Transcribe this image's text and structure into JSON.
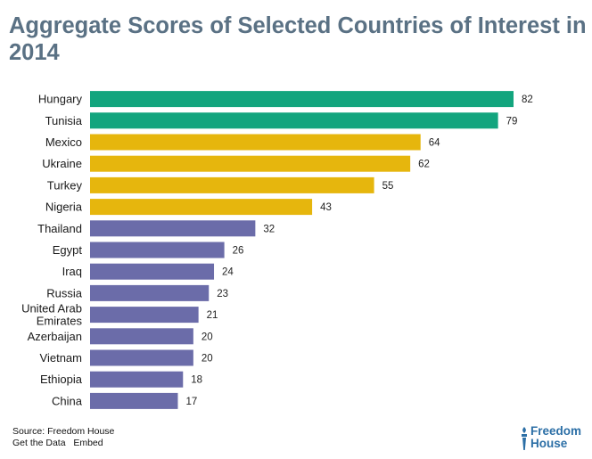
{
  "title": "Aggregate Scores of Selected Countries of Interest in 2014",
  "chart_data": {
    "type": "bar",
    "orientation": "horizontal",
    "title": "Aggregate Scores of Selected Countries of Interest in 2014",
    "xlabel": "",
    "ylabel": "",
    "xlim": [
      0,
      82
    ],
    "grid": false,
    "categories": [
      "Hungary",
      "Tunisia",
      "Mexico",
      "Ukraine",
      "Turkey",
      "Nigeria",
      "Thailand",
      "Egypt",
      "Iraq",
      "Russia",
      "United Arab Emirates",
      "Azerbaijan",
      "Vietnam",
      "Ethiopia",
      "China"
    ],
    "category_lines": [
      [
        "Hungary"
      ],
      [
        "Tunisia"
      ],
      [
        "Mexico"
      ],
      [
        "Ukraine"
      ],
      [
        "Turkey"
      ],
      [
        "Nigeria"
      ],
      [
        "Thailand"
      ],
      [
        "Egypt"
      ],
      [
        "Iraq"
      ],
      [
        "Russia"
      ],
      [
        "United Arab",
        "Emirates"
      ],
      [
        "Azerbaijan"
      ],
      [
        "Vietnam"
      ],
      [
        "Ethiopia"
      ],
      [
        "China"
      ]
    ],
    "values": [
      82,
      79,
      64,
      62,
      55,
      43,
      32,
      26,
      24,
      23,
      21,
      20,
      20,
      18,
      17
    ],
    "bar_colors": [
      "#13a57e",
      "#13a57e",
      "#e6b60d",
      "#e6b60d",
      "#e6b60d",
      "#e6b60d",
      "#6b6ca9",
      "#6b6ca9",
      "#6b6ca9",
      "#6b6ca9",
      "#6b6ca9",
      "#6b6ca9",
      "#6b6ca9",
      "#6b6ca9",
      "#6b6ca9"
    ],
    "colors": {
      "free": "#13a57e",
      "partly_free": "#e6b60d",
      "not_free": "#6b6ca9"
    }
  },
  "footer": {
    "source": "Source: Freedom House",
    "get_data": "Get the Data",
    "embed": "Embed"
  },
  "logo": {
    "line1": "Freedom",
    "line2": "House",
    "color": "#2c6fa6"
  }
}
